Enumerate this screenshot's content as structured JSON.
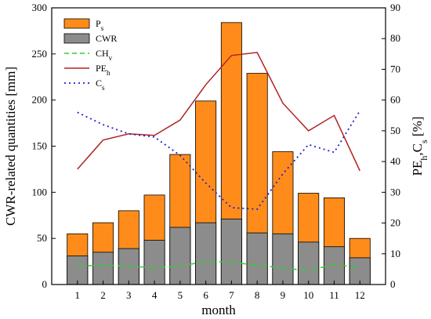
{
  "chart_data": {
    "type": "bar",
    "xlabel": "month",
    "ylabel": "CWR-related quantities [mm]",
    "y2label": {
      "base": "PE",
      "base_sub": "h",
      "sep": ",C",
      "sep_sub": "s",
      "unit": " [%]"
    },
    "categories": [
      "1",
      "2",
      "3",
      "4",
      "5",
      "6",
      "7",
      "8",
      "9",
      "10",
      "11",
      "12"
    ],
    "ylim": [
      0,
      300
    ],
    "yticks": [
      "0",
      "50",
      "100",
      "150",
      "200",
      "250",
      "300"
    ],
    "y2lim": [
      0,
      90
    ],
    "y2ticks": [
      "0",
      "10",
      "20",
      "30",
      "40",
      "50",
      "60",
      "70",
      "80",
      "90"
    ],
    "grid": false,
    "legend_position": "top-left",
    "series": [
      {
        "key": "Ps",
        "legend": {
          "base": "P",
          "sub": "s"
        },
        "kind": "bar",
        "axis": "left",
        "color": "#FF8C1A",
        "values": [
          55,
          67,
          80,
          97,
          141,
          199,
          284,
          229,
          144,
          99,
          94,
          50
        ]
      },
      {
        "key": "CWR",
        "legend": {
          "base": "CWR",
          "sub": ""
        },
        "kind": "bar",
        "axis": "left",
        "color": "#8C8C8C",
        "values": [
          31,
          35,
          39,
          48,
          62,
          67,
          71,
          56,
          55,
          46,
          41,
          29
        ]
      },
      {
        "key": "CHv",
        "legend": {
          "base": "CH",
          "sub": "v"
        },
        "kind": "line",
        "style": "dashed",
        "axis": "left",
        "color": "#33CC33",
        "values": [
          20,
          21,
          20,
          18,
          20,
          25,
          24,
          21,
          18,
          15,
          22,
          18
        ]
      },
      {
        "key": "PEh",
        "legend": {
          "base": "PE",
          "sub": "h"
        },
        "kind": "line",
        "style": "solid",
        "axis": "right",
        "color": "#B22222",
        "values": [
          37.5,
          47,
          49,
          48.5,
          53.5,
          65,
          74.5,
          75.5,
          59,
          50,
          55,
          37
        ]
      },
      {
        "key": "Cs",
        "legend": {
          "base": "C",
          "sub": "s"
        },
        "kind": "line",
        "style": "dotted",
        "axis": "right",
        "color": "#1F1FCC",
        "values": [
          56,
          52,
          49,
          48,
          42,
          33,
          25,
          24.5,
          36,
          45.5,
          43,
          56.5
        ]
      }
    ]
  }
}
